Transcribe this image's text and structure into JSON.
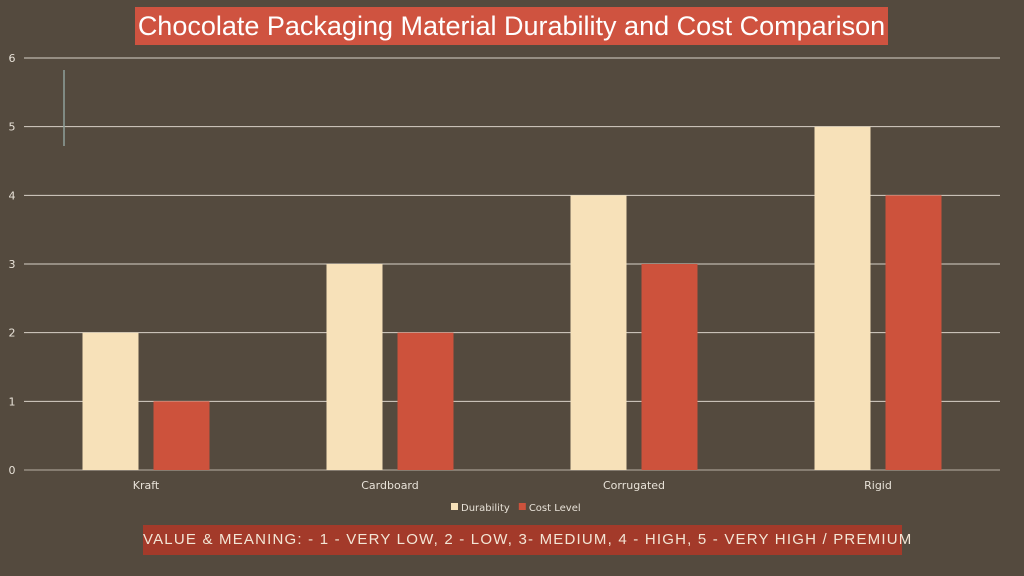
{
  "chart_data": {
    "type": "bar",
    "title": "Chocolate Packaging Material Durability and Cost Comparison",
    "categories": [
      "Kraft",
      "Cardboard",
      "Corrugated",
      "Rigid"
    ],
    "series": [
      {
        "name": "Durability",
        "values": [
          2,
          3,
          4,
          5
        ],
        "color": "#f7e1b9"
      },
      {
        "name": "Cost Level",
        "values": [
          1,
          2,
          3,
          4
        ],
        "color": "#cd523c"
      }
    ],
    "ylim": [
      0,
      6
    ],
    "yticks": [
      0,
      1,
      2,
      3,
      4,
      5,
      6
    ],
    "grid": true,
    "legend": "bottom",
    "annotation": "VALUE & MEANING: - 1 - VERY LOW, 2 - LOW, 3- MEDIUM, 4 - HIGH, 5 - VERY HIGH / PREMIUM"
  }
}
